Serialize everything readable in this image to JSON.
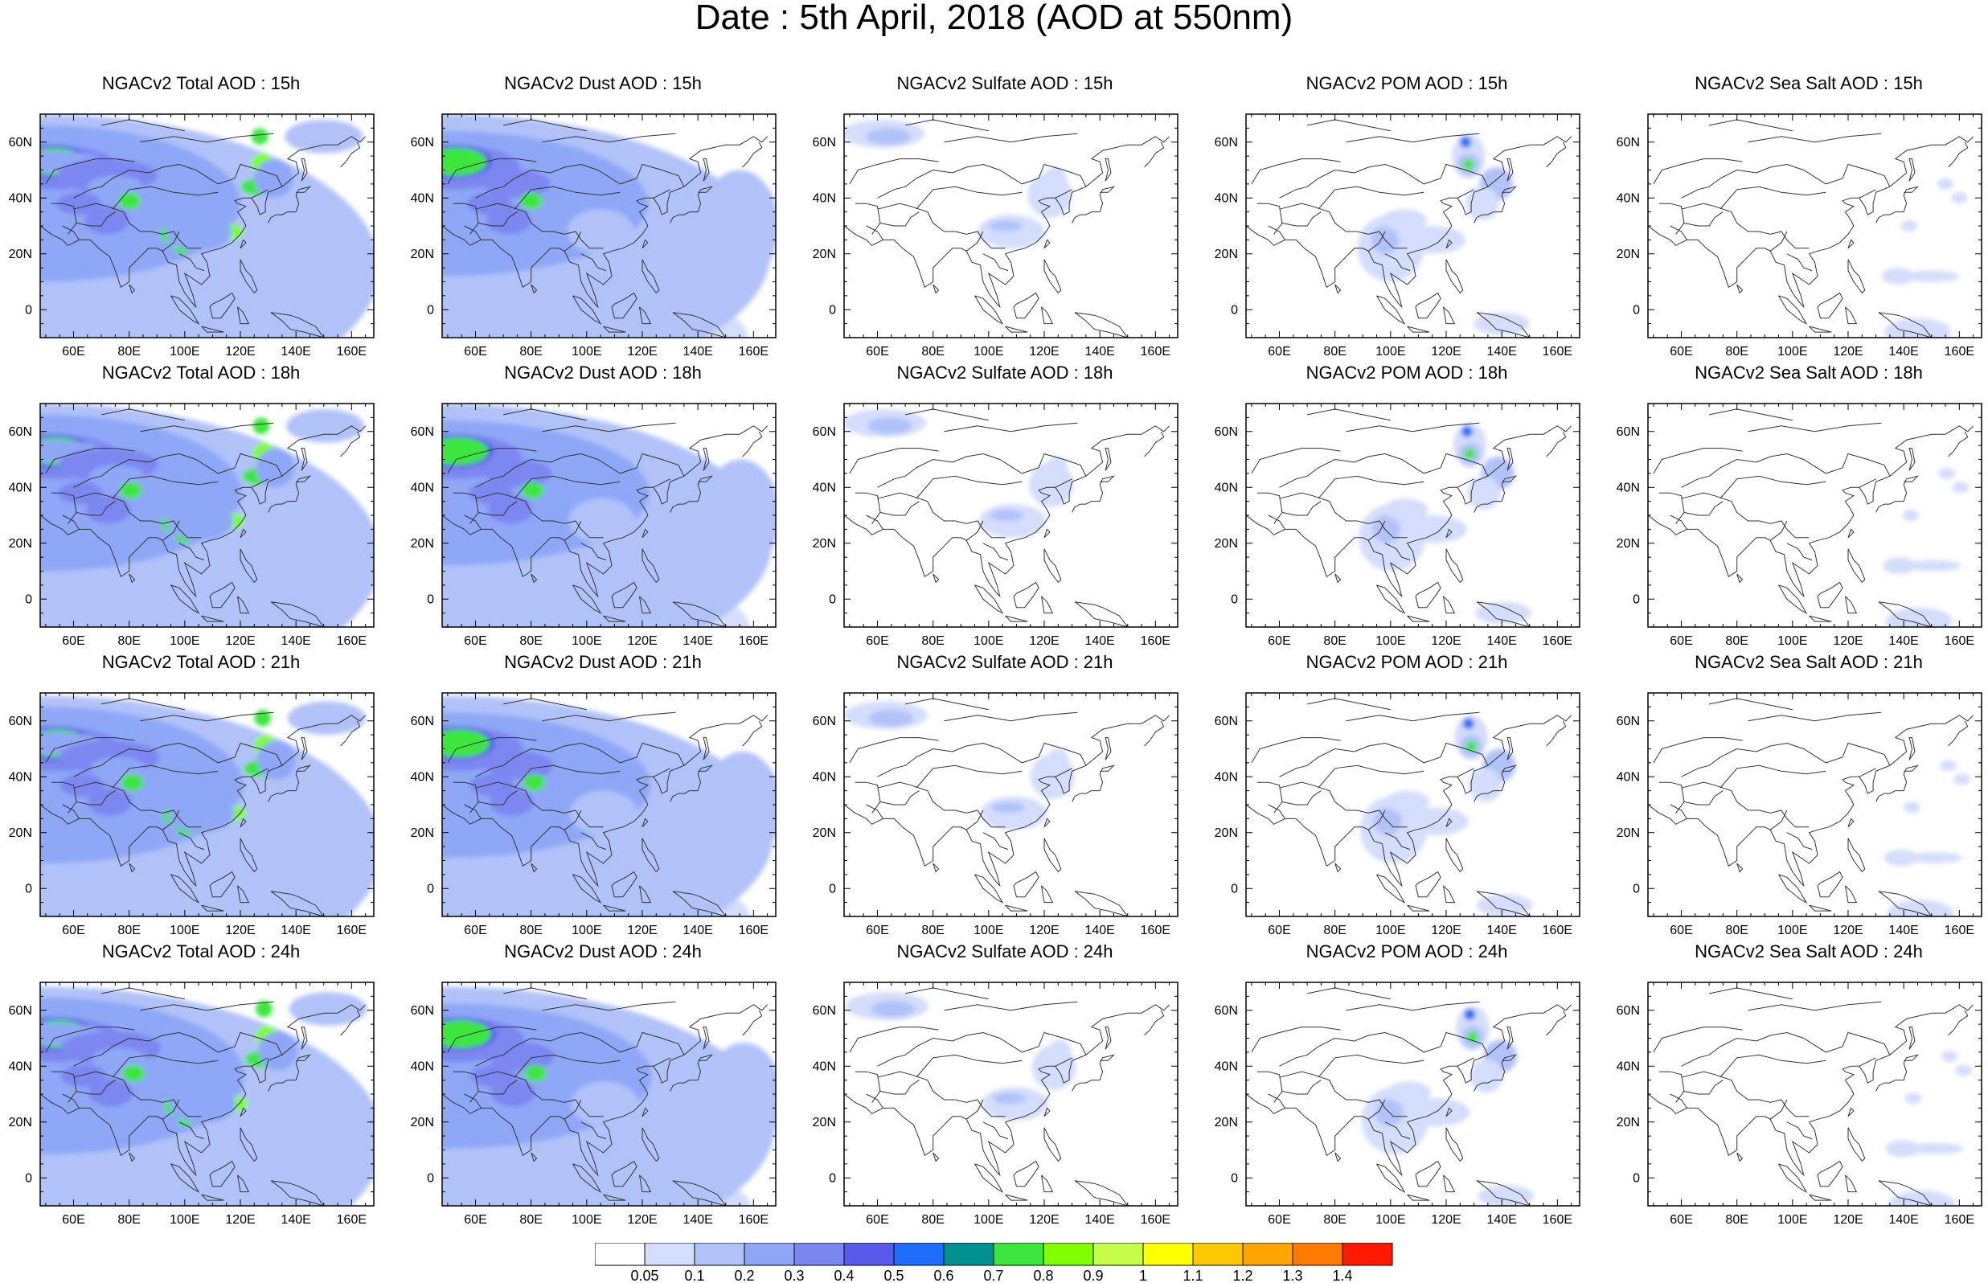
{
  "title": "Date : 5th April, 2018 (AOD at 550nm)",
  "axes": {
    "lon_ticks": [
      "60E",
      "80E",
      "100E",
      "120E",
      "140E",
      "160E"
    ],
    "lat_ticks": [
      "60N",
      "40N",
      "20N",
      "0"
    ],
    "lon_range": [
      48,
      168
    ],
    "lat_range": [
      -10,
      70
    ]
  },
  "colorbar": {
    "labels": [
      "0.05",
      "0.1",
      "0.2",
      "0.3",
      "0.4",
      "0.5",
      "0.6",
      "0.7",
      "0.8",
      "0.9",
      "1",
      "1.1",
      "1.2",
      "1.3",
      "1.4"
    ],
    "colors": [
      "#ffffff",
      "#d4ddfb",
      "#b1c2f9",
      "#8ea8f7",
      "#7b87f0",
      "#5a5aea",
      "#1e6dfc",
      "#009090",
      "#3de63d",
      "#7fff00",
      "#c5ff4a",
      "#ffff00",
      "#ffc800",
      "#ffa500",
      "#ff7a00",
      "#ff1a00"
    ]
  },
  "panels": [
    {
      "title": "NGACv2 Total AOD : 15h",
      "species": "total",
      "hour": 15
    },
    {
      "title": "NGACv2 Dust AOD : 15h",
      "species": "dust",
      "hour": 15
    },
    {
      "title": "NGACv2 Sulfate AOD : 15h",
      "species": "sulfate",
      "hour": 15
    },
    {
      "title": "NGACv2 POM AOD : 15h",
      "species": "pom",
      "hour": 15
    },
    {
      "title": "NGACv2 Sea Salt AOD : 15h",
      "species": "seasalt",
      "hour": 15
    },
    {
      "title": "NGACv2 Total AOD : 18h",
      "species": "total",
      "hour": 18
    },
    {
      "title": "NGACv2 Dust AOD : 18h",
      "species": "dust",
      "hour": 18
    },
    {
      "title": "NGACv2 Sulfate AOD : 18h",
      "species": "sulfate",
      "hour": 18
    },
    {
      "title": "NGACv2 POM AOD : 18h",
      "species": "pom",
      "hour": 18
    },
    {
      "title": "NGACv2 Sea Salt AOD : 18h",
      "species": "seasalt",
      "hour": 18
    },
    {
      "title": "NGACv2 Total AOD : 21h",
      "species": "total",
      "hour": 21
    },
    {
      "title": "NGACv2 Dust AOD : 21h",
      "species": "dust",
      "hour": 21
    },
    {
      "title": "NGACv2 Sulfate AOD : 21h",
      "species": "sulfate",
      "hour": 21
    },
    {
      "title": "NGACv2 POM AOD : 21h",
      "species": "pom",
      "hour": 21
    },
    {
      "title": "NGACv2 Sea Salt AOD : 21h",
      "species": "seasalt",
      "hour": 21
    },
    {
      "title": "NGACv2 Total AOD : 24h",
      "species": "total",
      "hour": 24
    },
    {
      "title": "NGACv2 Dust AOD : 24h",
      "species": "dust",
      "hour": 24
    },
    {
      "title": "NGACv2 Sulfate AOD : 24h",
      "species": "sulfate",
      "hour": 24
    },
    {
      "title": "NGACv2 POM AOD : 24h",
      "species": "pom",
      "hour": 24
    },
    {
      "title": "NGACv2 Sea Salt  AOD : 24h",
      "species": "seasalt",
      "hour": 24
    }
  ]
}
